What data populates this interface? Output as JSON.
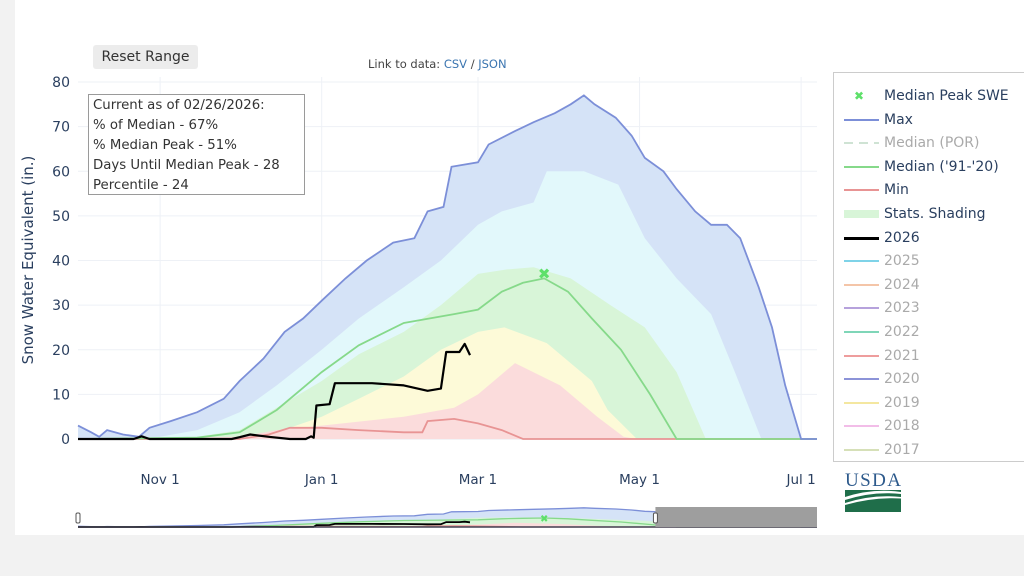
{
  "controls": {
    "reset_label": "Reset Range"
  },
  "links": {
    "prefix": "Link to data: ",
    "csv": "CSV",
    "sep": " / ",
    "json": "JSON"
  },
  "info_box": {
    "lines": [
      "Current as of 02/26/2026:",
      "% of Median - 67%",
      "% Median Peak - 51%",
      "Days Until Median Peak - 28",
      "Percentile - 24"
    ]
  },
  "logo": {
    "text": "USDA"
  },
  "legend": {
    "items": [
      {
        "label": "Median Peak SWE",
        "type": "marker",
        "color": "#5ee06a",
        "visible": true
      },
      {
        "label": "Max",
        "type": "line",
        "color": "#7c8fd8",
        "visible": true
      },
      {
        "label": "Median (POR)",
        "type": "dash",
        "color": "#cfe3d4",
        "visible": false
      },
      {
        "label": "Median ('91-'20)",
        "type": "line",
        "color": "#86d98a",
        "visible": true
      },
      {
        "label": "Min",
        "type": "line",
        "color": "#e89494",
        "visible": true
      },
      {
        "label": "Stats. Shading",
        "type": "band",
        "color": "#d8f5d8",
        "visible": true
      },
      {
        "label": "2026",
        "type": "line",
        "color": "#000000",
        "visible": true
      },
      {
        "label": "2025",
        "type": "line",
        "color": "#7fd3e8",
        "visible": false
      },
      {
        "label": "2024",
        "type": "line",
        "color": "#f4c5a8",
        "visible": false
      },
      {
        "label": "2023",
        "type": "line",
        "color": "#b6a2dc",
        "visible": false
      },
      {
        "label": "2022",
        "type": "line",
        "color": "#7fd6b8",
        "visible": false
      },
      {
        "label": "2021",
        "type": "line",
        "color": "#ee9d9d",
        "visible": false
      },
      {
        "label": "2020",
        "type": "line",
        "color": "#8c93d8",
        "visible": false
      },
      {
        "label": "2019",
        "type": "line",
        "color": "#f4e7a0",
        "visible": false
      },
      {
        "label": "2018",
        "type": "line",
        "color": "#f2bde8",
        "visible": false
      },
      {
        "label": "2017",
        "type": "line",
        "color": "#d6e0b8",
        "visible": false
      }
    ]
  },
  "chart_data": {
    "type": "area",
    "title": "",
    "ylabel": "Snow Water Equivalent (in.)",
    "xlabel": "",
    "xlim": [
      "2025-10-01",
      "2026-07-07"
    ],
    "ylim": [
      0,
      80
    ],
    "yticks": [
      0,
      10,
      20,
      30,
      40,
      50,
      60,
      70,
      80
    ],
    "xticks": [
      {
        "date": "2025-11-01",
        "label": "Nov 1"
      },
      {
        "date": "2026-01-01",
        "label": "Jan 1"
      },
      {
        "date": "2026-03-01",
        "label": "Mar 1"
      },
      {
        "date": "2026-05-01",
        "label": "May 1"
      },
      {
        "date": "2026-07-01",
        "label": "Jul 1"
      }
    ],
    "grid": true,
    "legend_position": "right",
    "colors": {
      "max_fill": "#d5e3f7",
      "p90_fill": "#e2f8fb",
      "p70_fill": "#d8f5d8",
      "p30_fill": "#fdfad8",
      "p10_fill": "#fbdcdc",
      "max_line": "#7c8fd8",
      "median_line": "#86d98a",
      "min_line": "#e89494",
      "current_line": "#000000",
      "peak_marker": "#5ee06a",
      "slider_mask": "#9e9e9e"
    },
    "series": {
      "max": [
        [
          "2025-10-01",
          3
        ],
        [
          "2025-10-06",
          1.5
        ],
        [
          "2025-10-09",
          0.5
        ],
        [
          "2025-10-12",
          2
        ],
        [
          "2025-10-18",
          1
        ],
        [
          "2025-10-24",
          0.5
        ],
        [
          "2025-10-28",
          2.5
        ],
        [
          "2025-11-05",
          4
        ],
        [
          "2025-11-15",
          6
        ],
        [
          "2025-11-25",
          9
        ],
        [
          "2025-12-01",
          13
        ],
        [
          "2025-12-10",
          18
        ],
        [
          "2025-12-18",
          24
        ],
        [
          "2025-12-25",
          27
        ],
        [
          "2026-01-01",
          31
        ],
        [
          "2026-01-10",
          36
        ],
        [
          "2026-01-18",
          40
        ],
        [
          "2026-01-28",
          44
        ],
        [
          "2026-02-05",
          45
        ],
        [
          "2026-02-10",
          51
        ],
        [
          "2026-02-16",
          52
        ],
        [
          "2026-02-19",
          61
        ],
        [
          "2026-03-01",
          62
        ],
        [
          "2026-03-05",
          66
        ],
        [
          "2026-03-15",
          69
        ],
        [
          "2026-03-22",
          71
        ],
        [
          "2026-03-30",
          73
        ],
        [
          "2026-04-05",
          75
        ],
        [
          "2026-04-10",
          77
        ],
        [
          "2026-04-14",
          75
        ],
        [
          "2026-04-22",
          72
        ],
        [
          "2026-04-28",
          68
        ],
        [
          "2026-05-03",
          63
        ],
        [
          "2026-05-10",
          60
        ],
        [
          "2026-05-15",
          56
        ],
        [
          "2026-05-22",
          51
        ],
        [
          "2026-05-28",
          48
        ],
        [
          "2026-06-03",
          48
        ],
        [
          "2026-06-08",
          45
        ],
        [
          "2026-06-15",
          34
        ],
        [
          "2026-06-20",
          25
        ],
        [
          "2026-06-25",
          12
        ],
        [
          "2026-07-01",
          0
        ],
        [
          "2026-07-07",
          0
        ]
      ],
      "p90": [
        [
          "2025-10-01",
          0
        ],
        [
          "2025-11-01",
          0.5
        ],
        [
          "2025-11-15",
          2
        ],
        [
          "2025-12-01",
          6
        ],
        [
          "2025-12-15",
          12
        ],
        [
          "2026-01-01",
          20
        ],
        [
          "2026-01-15",
          27
        ],
        [
          "2026-02-01",
          34
        ],
        [
          "2026-02-15",
          40
        ],
        [
          "2026-03-01",
          48
        ],
        [
          "2026-03-10",
          51
        ],
        [
          "2026-03-22",
          53
        ],
        [
          "2026-03-27",
          60
        ],
        [
          "2026-04-10",
          60
        ],
        [
          "2026-04-23",
          57
        ],
        [
          "2026-05-03",
          45
        ],
        [
          "2026-05-15",
          36
        ],
        [
          "2026-05-28",
          28
        ],
        [
          "2026-06-06",
          15
        ],
        [
          "2026-06-16",
          0
        ],
        [
          "2026-07-07",
          0
        ]
      ],
      "p70": [
        [
          "2025-10-01",
          0
        ],
        [
          "2025-11-15",
          0.5
        ],
        [
          "2025-12-01",
          2
        ],
        [
          "2025-12-15",
          7
        ],
        [
          "2026-01-01",
          13
        ],
        [
          "2026-01-15",
          19
        ],
        [
          "2026-02-01",
          24
        ],
        [
          "2026-02-15",
          30
        ],
        [
          "2026-03-01",
          37
        ],
        [
          "2026-03-12",
          38
        ],
        [
          "2026-03-22",
          38.5
        ],
        [
          "2026-04-05",
          36
        ],
        [
          "2026-04-20",
          30
        ],
        [
          "2026-05-03",
          25
        ],
        [
          "2026-05-15",
          15
        ],
        [
          "2026-05-26",
          0
        ],
        [
          "2026-07-07",
          0
        ]
      ],
      "median": [
        [
          "2025-10-01",
          0
        ],
        [
          "2025-11-15",
          0.3
        ],
        [
          "2025-12-01",
          1.5
        ],
        [
          "2025-12-15",
          6.5
        ],
        [
          "2026-01-01",
          15
        ],
        [
          "2026-01-15",
          21
        ],
        [
          "2026-02-01",
          26
        ],
        [
          "2026-02-20",
          28
        ],
        [
          "2026-03-01",
          29
        ],
        [
          "2026-03-10",
          33
        ],
        [
          "2026-03-18",
          35
        ],
        [
          "2026-03-26",
          36
        ],
        [
          "2026-04-04",
          33
        ],
        [
          "2026-04-13",
          27
        ],
        [
          "2026-04-24",
          20
        ],
        [
          "2026-05-05",
          10
        ],
        [
          "2026-05-15",
          0
        ],
        [
          "2026-07-07",
          0
        ]
      ],
      "p30": [
        [
          "2025-10-01",
          0
        ],
        [
          "2025-12-01",
          0.3
        ],
        [
          "2025-12-15",
          1.5
        ],
        [
          "2026-01-01",
          5
        ],
        [
          "2026-01-15",
          9
        ],
        [
          "2026-02-01",
          14
        ],
        [
          "2026-02-15",
          20
        ],
        [
          "2026-03-01",
          24
        ],
        [
          "2026-03-11",
          25
        ],
        [
          "2026-03-27",
          21.5
        ],
        [
          "2026-04-13",
          13
        ],
        [
          "2026-04-19",
          6.5
        ],
        [
          "2026-04-30",
          0
        ],
        [
          "2026-07-07",
          0
        ]
      ],
      "p10": [
        [
          "2025-10-01",
          0
        ],
        [
          "2025-12-01",
          0.5
        ],
        [
          "2025-12-15",
          2
        ],
        [
          "2026-01-01",
          3
        ],
        [
          "2026-02-01",
          5
        ],
        [
          "2026-02-20",
          7
        ],
        [
          "2026-03-01",
          10
        ],
        [
          "2026-03-15",
          17
        ],
        [
          "2026-04-01",
          12
        ],
        [
          "2026-04-15",
          5
        ],
        [
          "2026-04-25",
          0.5
        ],
        [
          "2026-04-30",
          0
        ],
        [
          "2026-07-07",
          0
        ]
      ],
      "min": [
        [
          "2025-10-01",
          0
        ],
        [
          "2025-12-01",
          0
        ],
        [
          "2025-12-12",
          1
        ],
        [
          "2025-12-20",
          2.5
        ],
        [
          "2026-01-01",
          2.5
        ],
        [
          "2026-01-15",
          2
        ],
        [
          "2026-02-01",
          1.5
        ],
        [
          "2026-02-08",
          1.5
        ],
        [
          "2026-02-10",
          4
        ],
        [
          "2026-02-20",
          4.5
        ],
        [
          "2026-03-01",
          3.5
        ],
        [
          "2026-03-10",
          2
        ],
        [
          "2026-03-18",
          0
        ],
        [
          "2026-07-07",
          0
        ]
      ],
      "current_2026": [
        [
          "2025-10-01",
          0
        ],
        [
          "2025-10-22",
          0
        ],
        [
          "2025-10-25",
          0.6
        ],
        [
          "2025-10-28",
          0
        ],
        [
          "2025-11-28",
          0
        ],
        [
          "2025-12-01",
          0.4
        ],
        [
          "2025-12-05",
          1
        ],
        [
          "2025-12-12",
          0.5
        ],
        [
          "2025-12-20",
          0
        ],
        [
          "2025-12-26",
          0
        ],
        [
          "2025-12-28",
          0.6
        ],
        [
          "2025-12-29",
          0.3
        ],
        [
          "2025-12-30",
          7.5
        ],
        [
          "2026-01-04",
          7.8
        ],
        [
          "2026-01-06",
          12.5
        ],
        [
          "2026-01-20",
          12.5
        ],
        [
          "2026-02-01",
          12
        ],
        [
          "2026-02-10",
          10.8
        ],
        [
          "2026-02-15",
          11.3
        ],
        [
          "2026-02-17",
          19.5
        ],
        [
          "2026-02-22",
          19.5
        ],
        [
          "2026-02-24",
          21.3
        ],
        [
          "2026-02-26",
          18.8
        ]
      ]
    },
    "median_peak": {
      "date": "2026-03-26",
      "value": 37
    },
    "range_slider": {
      "selected": [
        "2025-10-01",
        "2026-05-07"
      ]
    }
  }
}
